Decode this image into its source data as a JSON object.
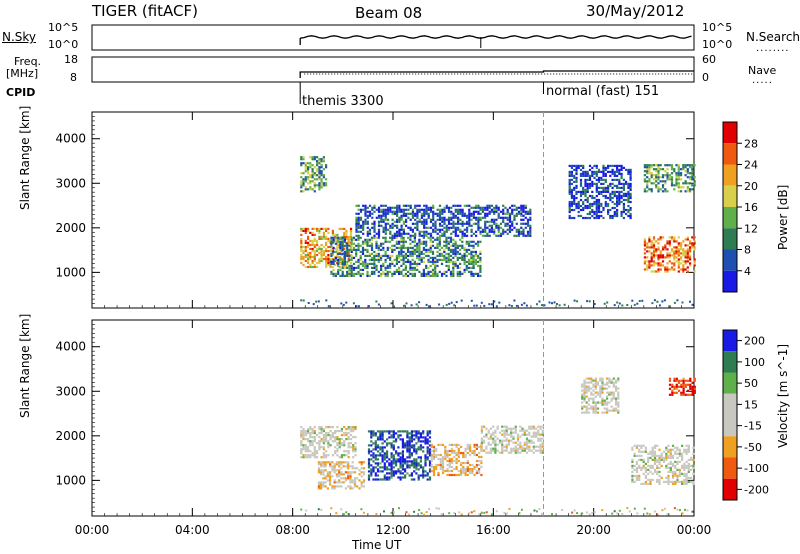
{
  "header": {
    "radar": "TIGER (fitACF)",
    "beam": "Beam 08",
    "date": "30/May/2012"
  },
  "top_panels": {
    "nsky_label": "N.Sky",
    "nsky_ticks": [
      "10^5",
      "10^0"
    ],
    "nsearch_label": "N.Search",
    "nsearch_ticks": [
      "10^5",
      "10^0"
    ],
    "freq_label_1": "Freq.",
    "freq_label_2": "[MHz]",
    "freq_ticks": [
      "18",
      "8"
    ],
    "nave_label": "Nave",
    "nave_ticks": [
      "60",
      "0"
    ],
    "cpid_label": "CPID",
    "modes": [
      {
        "label": "themis 3300",
        "start_hour": 8.3
      },
      {
        "label": "normal (fast) 151",
        "start_hour": 18.0
      }
    ]
  },
  "chart_data": [
    {
      "type": "heatmap",
      "title": "Power",
      "ylabel": "Slant Range [km]",
      "colorbar_label": "Power [dB]",
      "colorbar_ticks": [
        "28",
        "24",
        "20",
        "16",
        "12",
        "8",
        "4"
      ],
      "colorbar_range": [
        0,
        32
      ],
      "colors": [
        "#1a1ae6",
        "#1f4fb0",
        "#2e7d52",
        "#5fb04a",
        "#d8d04a",
        "#f0a020",
        "#ef5a10",
        "#e00000"
      ],
      "y_ticks": [
        1000,
        2000,
        3000,
        4000
      ],
      "ylim": [
        200,
        4600
      ],
      "x_ticks": [
        "00:00",
        "04:00",
        "08:00",
        "12:00",
        "16:00",
        "20:00",
        "00:00"
      ],
      "xlim_hours": [
        0,
        24
      ],
      "data_start_hour": 8.3,
      "regions": [
        {
          "from": 8.3,
          "to": 10.3,
          "y": [
            1100,
            2000
          ],
          "level": 22
        },
        {
          "from": 8.3,
          "to": 9.3,
          "y": [
            2800,
            3600
          ],
          "level": 12
        },
        {
          "from": 9.5,
          "to": 15.5,
          "y": [
            900,
            1800
          ],
          "level": 10
        },
        {
          "from": 10.5,
          "to": 17.5,
          "y": [
            1800,
            2500
          ],
          "level": 6
        },
        {
          "from": 19.0,
          "to": 21.5,
          "y": [
            2200,
            3400
          ],
          "level": 5
        },
        {
          "from": 22.0,
          "to": 24.0,
          "y": [
            1000,
            1800
          ],
          "level": 24
        },
        {
          "from": 22.0,
          "to": 24.0,
          "y": [
            2800,
            3400
          ],
          "level": 12
        }
      ]
    },
    {
      "type": "heatmap",
      "title": "Velocity",
      "ylabel": "Slant Range [km]",
      "colorbar_label": "Velocity [m s^-1]",
      "colorbar_ticks": [
        "200",
        "100",
        "50",
        "15",
        "-15",
        "-50",
        "-100",
        "-200"
      ],
      "colorbar_range": [
        -250,
        250
      ],
      "colors": [
        "#e00000",
        "#ef5a10",
        "#f0a020",
        "#c8c8c0",
        "#c8c8c0",
        "#5fb04a",
        "#2e7d52",
        "#1a1ae6"
      ],
      "y_ticks": [
        1000,
        2000,
        3000,
        4000
      ],
      "ylim": [
        200,
        4600
      ],
      "x_ticks": [
        "00:00",
        "04:00",
        "08:00",
        "12:00",
        "16:00",
        "20:00",
        "00:00"
      ],
      "xlabel": "Time UT",
      "xlim_hours": [
        0,
        24
      ],
      "data_start_hour": 8.3,
      "regions": [
        {
          "from": 8.3,
          "to": 10.5,
          "y": [
            1500,
            2200
          ],
          "level": 0
        },
        {
          "from": 9.0,
          "to": 10.8,
          "y": [
            800,
            1400
          ],
          "level": -60
        },
        {
          "from": 11.0,
          "to": 13.5,
          "y": [
            1000,
            2100
          ],
          "level": 200
        },
        {
          "from": 13.5,
          "to": 15.5,
          "y": [
            1100,
            1800
          ],
          "level": -60
        },
        {
          "from": 15.5,
          "to": 18.0,
          "y": [
            1600,
            2200
          ],
          "level": 0
        },
        {
          "from": 19.5,
          "to": 21.0,
          "y": [
            2500,
            3300
          ],
          "level": 0
        },
        {
          "from": 21.5,
          "to": 24.0,
          "y": [
            900,
            1800
          ],
          "level": 0
        },
        {
          "from": 23.0,
          "to": 24.0,
          "y": [
            2900,
            3300
          ],
          "level": -200
        }
      ]
    }
  ]
}
